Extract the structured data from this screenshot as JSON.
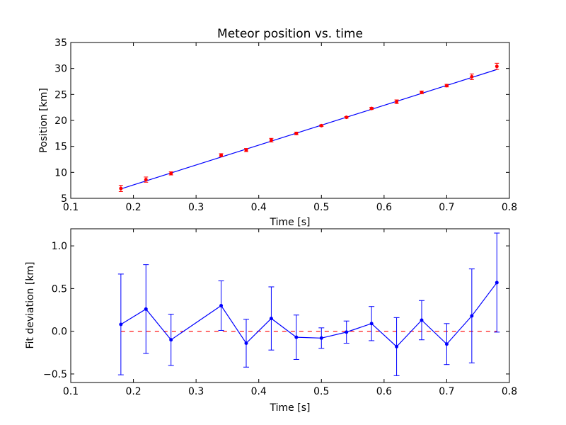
{
  "chart_data": [
    {
      "type": "scatter",
      "title": "Meteor position vs. time",
      "xlabel": "Time [s]",
      "ylabel": "Position [km]",
      "xlim": [
        0.1,
        0.8
      ],
      "ylim": [
        5,
        35
      ],
      "xticks": [
        "0.1",
        "0.2",
        "0.3",
        "0.4",
        "0.5",
        "0.6",
        "0.7",
        "0.8"
      ],
      "yticks": [
        "5",
        "10",
        "15",
        "20",
        "25",
        "30",
        "35"
      ],
      "grid": false,
      "series": [
        {
          "style": "red points with error bars",
          "color": "#ff0000",
          "x": [
            0.18,
            0.22,
            0.26,
            0.34,
            0.38,
            0.42,
            0.46,
            0.5,
            0.54,
            0.58,
            0.62,
            0.66,
            0.7,
            0.74,
            0.78
          ],
          "y": [
            6.9,
            8.6,
            9.8,
            13.3,
            14.3,
            16.2,
            17.5,
            19.0,
            20.6,
            22.3,
            23.6,
            25.4,
            26.7,
            28.4,
            30.4
          ],
          "yerr": [
            0.6,
            0.5,
            0.3,
            0.3,
            0.3,
            0.35,
            0.25,
            0.15,
            0.15,
            0.2,
            0.35,
            0.25,
            0.25,
            0.55,
            0.6
          ]
        },
        {
          "style": "blue fit line",
          "color": "#0000ff",
          "x": [
            0.18,
            0.78
          ],
          "y": [
            6.82,
            29.8
          ]
        }
      ]
    },
    {
      "type": "line",
      "title": "",
      "xlabel": "Time [s]",
      "ylabel": "Fit deviation [km]",
      "xlim": [
        0.1,
        0.8
      ],
      "ylim": [
        -0.6,
        1.2
      ],
      "xticks": [
        "0.1",
        "0.2",
        "0.3",
        "0.4",
        "0.5",
        "0.6",
        "0.7",
        "0.8"
      ],
      "yticks": [
        "−0.5",
        "0.0",
        "0.5",
        "1.0"
      ],
      "ytick_values": [
        -0.5,
        0.0,
        0.5,
        1.0
      ],
      "grid": false,
      "series": [
        {
          "style": "blue line with markers and error bars",
          "color": "#0000ff",
          "x": [
            0.18,
            0.22,
            0.26,
            0.34,
            0.38,
            0.42,
            0.46,
            0.5,
            0.54,
            0.58,
            0.62,
            0.66,
            0.7,
            0.74,
            0.78
          ],
          "y": [
            0.08,
            0.26,
            -0.1,
            0.3,
            -0.14,
            0.15,
            -0.07,
            -0.08,
            -0.01,
            0.09,
            -0.18,
            0.13,
            -0.15,
            0.18,
            0.57
          ],
          "yerr": [
            0.59,
            0.52,
            0.3,
            0.29,
            0.28,
            0.37,
            0.26,
            0.12,
            0.13,
            0.2,
            0.34,
            0.23,
            0.24,
            0.55,
            0.58
          ]
        },
        {
          "style": "red dashed zero line",
          "color": "#ff0000",
          "x": [
            0.18,
            0.78
          ],
          "y": [
            0.0,
            0.0
          ]
        }
      ]
    }
  ]
}
